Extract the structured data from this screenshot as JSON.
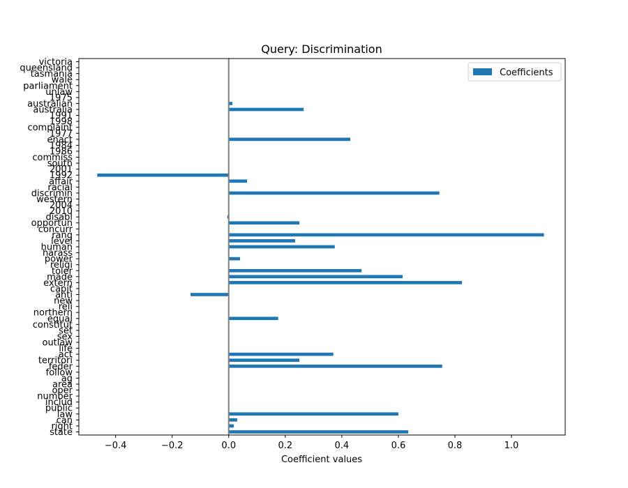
{
  "chart_data": {
    "type": "bar",
    "orientation": "horizontal",
    "title": "Query: Discrimination",
    "xlabel": "Coefficient values",
    "ylabel": "",
    "xlim": [
      -0.53,
      1.19
    ],
    "xticks": [
      "−0.4",
      "−0.2",
      "0.0",
      "0.2",
      "0.4",
      "0.6",
      "0.8",
      "1.0"
    ],
    "xtick_values": [
      -0.4,
      -0.2,
      0.0,
      0.2,
      0.4,
      0.6,
      0.8,
      1.0
    ],
    "reference_line_x": 0.0,
    "legend": {
      "position": "top-right",
      "entries": [
        "Coefficients"
      ]
    },
    "series": [
      {
        "name": "Coefficients",
        "color": "#1f77b4",
        "categories": [
          "state",
          "right",
          "can",
          "law",
          "public",
          "includ",
          "number",
          "oper",
          "area",
          "ag",
          "follow",
          "feder",
          "territori",
          "act",
          "life",
          "outlaw",
          "sex",
          "set",
          "constitut",
          "equal",
          "northern",
          "reli",
          "new",
          "anti",
          "capit",
          "extern",
          "made",
          "toler",
          "religi",
          "power",
          "harass",
          "human",
          "level",
          "rang",
          "concurr",
          "opportun",
          "disabl",
          "2010",
          "2004",
          "western",
          "discrimin",
          "racial",
          "affair",
          "1992",
          "2001",
          "south",
          "commiss",
          "1986",
          "1984",
          "enact",
          "1977",
          "complaint",
          "1998",
          "1991",
          "australia",
          "australian",
          "1975",
          "unlaw",
          "parliament",
          "wale",
          "tasmania",
          "queensland",
          "victoria"
        ],
        "values": [
          0.635,
          0.018,
          0.03,
          0.6,
          0,
          0,
          0,
          0,
          0,
          0,
          0,
          0.755,
          0.25,
          0.37,
          0,
          0,
          0,
          0,
          0,
          0.175,
          0,
          0,
          0,
          -0.135,
          0,
          0.825,
          0.615,
          0.47,
          0,
          0.04,
          0,
          0.375,
          0.235,
          1.115,
          0,
          0.25,
          -0.005,
          0,
          0,
          0,
          0.745,
          0,
          0.065,
          -0.465,
          0,
          0,
          0,
          0,
          0,
          0.43,
          0,
          0,
          0,
          0,
          0.265,
          0.013,
          0,
          0,
          0,
          0,
          0,
          0,
          0
        ]
      }
    ]
  },
  "colors": {
    "bar": "#1f77b4",
    "zero_line": "#808080",
    "axes": "#000000"
  }
}
